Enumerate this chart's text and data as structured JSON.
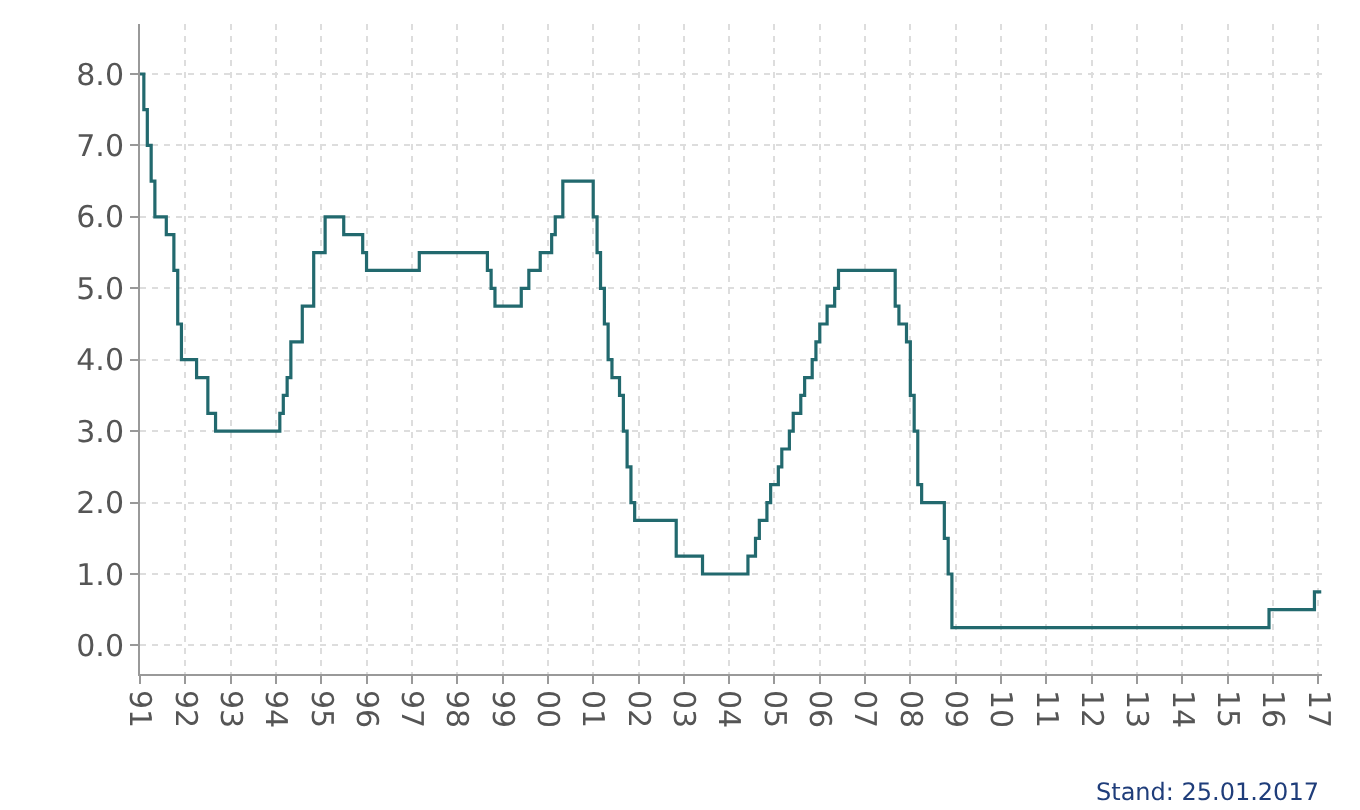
{
  "chart_data": {
    "type": "step",
    "x": [
      "1991-01",
      "1991-02",
      "1991-03",
      "1991-04",
      "1991-05",
      "1991-08",
      "1991-10",
      "1991-11",
      "1991-12",
      "1992-04",
      "1992-07",
      "1992-09",
      "1994-02",
      "1994-03",
      "1994-04",
      "1994-05",
      "1994-08",
      "1994-11",
      "1995-02",
      "1995-07",
      "1995-12",
      "1996-01",
      "1997-03",
      "1998-09",
      "1998-10",
      "1998-11",
      "1999-06",
      "1999-08",
      "1999-11",
      "2000-02",
      "2000-03",
      "2000-05",
      "2001-01",
      "2001-02",
      "2001-03",
      "2001-04",
      "2001-05",
      "2001-06",
      "2001-08",
      "2001-09",
      "2001-10",
      "2001-11",
      "2001-12",
      "2002-11",
      "2003-06",
      "2004-06",
      "2004-08",
      "2004-09",
      "2004-11",
      "2004-12",
      "2005-02",
      "2005-03",
      "2005-05",
      "2005-06",
      "2005-08",
      "2005-09",
      "2005-11",
      "2005-12",
      "2006-01",
      "2006-03",
      "2006-05",
      "2006-06",
      "2007-09",
      "2007-10",
      "2007-12",
      "2008-01",
      "2008-02",
      "2008-03",
      "2008-04",
      "2008-10",
      "2008-11",
      "2008-12",
      "2015-12",
      "2016-12",
      "2017-01-25"
    ],
    "series": [
      {
        "color": "#22696e",
        "values": [
          8.0,
          7.5,
          7.0,
          6.5,
          6.0,
          5.75,
          5.25,
          4.5,
          4.0,
          3.75,
          3.25,
          3.0,
          3.25,
          3.5,
          3.75,
          4.25,
          4.75,
          5.5,
          6.0,
          5.75,
          5.5,
          5.25,
          5.5,
          5.25,
          5.0,
          4.75,
          5.0,
          5.25,
          5.5,
          5.75,
          6.0,
          6.5,
          6.0,
          5.5,
          5.0,
          4.5,
          4.0,
          3.75,
          3.5,
          3.0,
          2.5,
          2.0,
          1.75,
          1.25,
          1.0,
          1.25,
          1.5,
          1.75,
          2.0,
          2.25,
          2.5,
          2.75,
          3.0,
          3.25,
          3.5,
          3.75,
          4.0,
          4.25,
          4.5,
          4.75,
          5.0,
          5.25,
          4.75,
          4.5,
          4.25,
          3.5,
          3.0,
          2.25,
          2.0,
          1.5,
          1.0,
          0.25,
          0.5,
          0.75,
          0.75
        ]
      }
    ],
    "xlim": [
      "1991-01-01",
      "2017-01-31"
    ],
    "xticks": [
      {
        "value": "1991",
        "label": "91"
      },
      {
        "value": "1992",
        "label": "92"
      },
      {
        "value": "1993",
        "label": "93"
      },
      {
        "value": "1994",
        "label": "94"
      },
      {
        "value": "1995",
        "label": "95"
      },
      {
        "value": "1996",
        "label": "96"
      },
      {
        "value": "1997",
        "label": "97"
      },
      {
        "value": "1998",
        "label": "98"
      },
      {
        "value": "1999",
        "label": "99"
      },
      {
        "value": "2000",
        "label": "00"
      },
      {
        "value": "2001",
        "label": "01"
      },
      {
        "value": "2002",
        "label": "02"
      },
      {
        "value": "2003",
        "label": "03"
      },
      {
        "value": "2004",
        "label": "04"
      },
      {
        "value": "2005",
        "label": "05"
      },
      {
        "value": "2006",
        "label": "06"
      },
      {
        "value": "2007",
        "label": "07"
      },
      {
        "value": "2008",
        "label": "08"
      },
      {
        "value": "2009",
        "label": "09"
      },
      {
        "value": "2010",
        "label": "10"
      },
      {
        "value": "2011",
        "label": "11"
      },
      {
        "value": "2012",
        "label": "12"
      },
      {
        "value": "2013",
        "label": "13"
      },
      {
        "value": "2014",
        "label": "14"
      },
      {
        "value": "2015",
        "label": "15"
      },
      {
        "value": "2016",
        "label": "16"
      },
      {
        "value": "2017",
        "label": "17"
      }
    ],
    "ylim": [
      -0.4,
      8.7
    ],
    "yticks": [
      {
        "value": 0,
        "label": "0.0"
      },
      {
        "value": 1,
        "label": "1.0"
      },
      {
        "value": 2,
        "label": "2.0"
      },
      {
        "value": 3,
        "label": "3.0"
      },
      {
        "value": 4,
        "label": "4.0"
      },
      {
        "value": 5,
        "label": "5.0"
      },
      {
        "value": 6,
        "label": "6.0"
      },
      {
        "value": 7,
        "label": "7.0"
      },
      {
        "value": 8,
        "label": "8.0"
      }
    ],
    "grid": true,
    "marker": "none",
    "line_style": "solid",
    "annotations": [
      "Stand: 25.01.2017"
    ]
  }
}
